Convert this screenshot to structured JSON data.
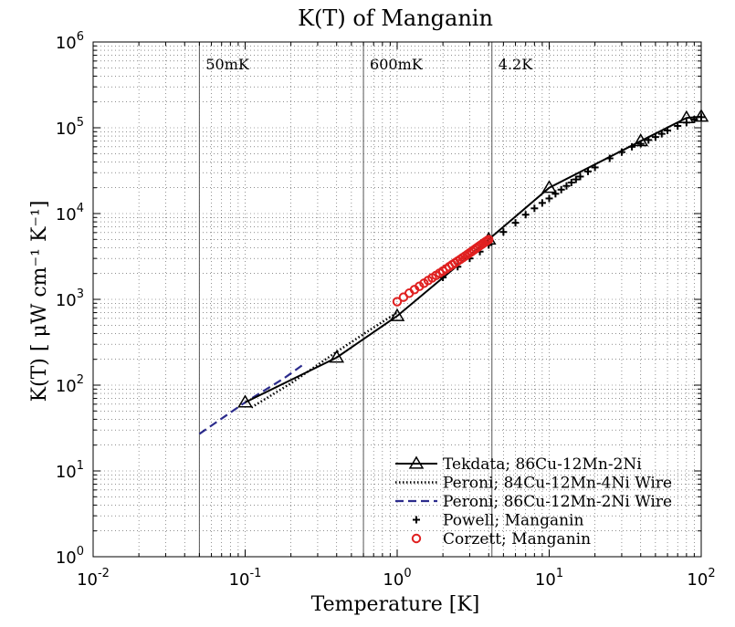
{
  "chart_data": {
    "type": "line",
    "title": "K(T) of Manganin",
    "xlabel": "Temperature [K]",
    "ylabel": "K(T) [ μW cm⁻¹ K⁻¹]",
    "x_scale": "log",
    "y_scale": "log",
    "xlim": [
      0.01,
      100
    ],
    "ylim": [
      1,
      1000000
    ],
    "grid": true,
    "legend_position": "bottom-right",
    "x_ticks": [
      {
        "base": "10",
        "exp": "-2"
      },
      {
        "base": "10",
        "exp": "-1"
      },
      {
        "base": "10",
        "exp": "0"
      },
      {
        "base": "10",
        "exp": "1"
      },
      {
        "base": "10",
        "exp": "2"
      }
    ],
    "y_ticks": [
      {
        "base": "10",
        "exp": "0"
      },
      {
        "base": "10",
        "exp": "1"
      },
      {
        "base": "10",
        "exp": "2"
      },
      {
        "base": "10",
        "exp": "3"
      },
      {
        "base": "10",
        "exp": "4"
      },
      {
        "base": "10",
        "exp": "5"
      },
      {
        "base": "10",
        "exp": "6"
      }
    ],
    "reference_lines": [
      {
        "x": 0.05,
        "label": "50mK"
      },
      {
        "x": 0.6,
        "label": "600mK"
      },
      {
        "x": 4.2,
        "label": "4.2K"
      }
    ],
    "series": [
      {
        "name": "Tekdata; 86Cu-12Mn-2Ni",
        "style": "solid-triangle",
        "color": "#000000",
        "x": [
          0.1,
          0.4,
          1.0,
          4.0,
          10,
          40,
          80,
          100
        ],
        "y": [
          63,
          210,
          640,
          5000,
          20000,
          70000,
          130000,
          135000
        ]
      },
      {
        "name": "Peroni; 84Cu-12Mn-4Ni Wire",
        "style": "dotted",
        "color": "#000000",
        "x": [
          0.11,
          0.2,
          0.4,
          0.7,
          1.0
        ],
        "y": [
          55,
          105,
          245,
          470,
          700
        ]
      },
      {
        "name": "Peroni; 86Cu-12Mn-2Ni Wire",
        "style": "dashed",
        "color": "#2b2b8c",
        "x": [
          0.05,
          0.1,
          0.18,
          0.25
        ],
        "y": [
          27,
          63,
          120,
          182
        ]
      },
      {
        "name": "Powell; Manganin",
        "style": "plus",
        "color": "#000000",
        "x": [
          2.0,
          2.5,
          3.0,
          3.5,
          4.0,
          5.0,
          6.0,
          7.0,
          8.0,
          9.0,
          10.0,
          11.0,
          12.0,
          13.0,
          14.0,
          15.0,
          16.0,
          18.0,
          20.0,
          25.0,
          30.0,
          35.0,
          40.0,
          45.0,
          50.0,
          55.0,
          60.0,
          70.0,
          80.0,
          90.0,
          100.0
        ],
        "y": [
          1800,
          2400,
          3000,
          3600,
          4300,
          6100,
          7800,
          9700,
          11500,
          13300,
          15000,
          17000,
          19000,
          21000,
          23000,
          25000,
          27000,
          31000,
          34500,
          44000,
          52000,
          60000,
          65000,
          72000,
          78000,
          85000,
          93000,
          105000,
          115000,
          125000,
          133000
        ]
      },
      {
        "name": "Corzett; Manganin",
        "style": "circle",
        "color": "#e02020",
        "x": [
          1.0,
          1.1,
          1.2,
          1.3,
          1.4,
          1.5,
          1.6,
          1.7,
          1.8,
          1.9,
          2.0,
          2.1,
          2.2,
          2.3,
          2.4,
          2.5,
          2.6,
          2.7,
          2.8,
          2.9,
          3.0,
          3.1,
          3.2,
          3.3,
          3.4,
          3.5,
          3.6,
          3.7,
          3.8,
          3.9,
          4.0
        ],
        "y": [
          940,
          1060,
          1180,
          1300,
          1420,
          1540,
          1660,
          1780,
          1900,
          2020,
          2140,
          2270,
          2400,
          2530,
          2660,
          2790,
          2920,
          3060,
          3200,
          3340,
          3480,
          3620,
          3770,
          3920,
          4070,
          4220,
          4370,
          4520,
          4670,
          4820,
          4970
        ]
      }
    ]
  }
}
